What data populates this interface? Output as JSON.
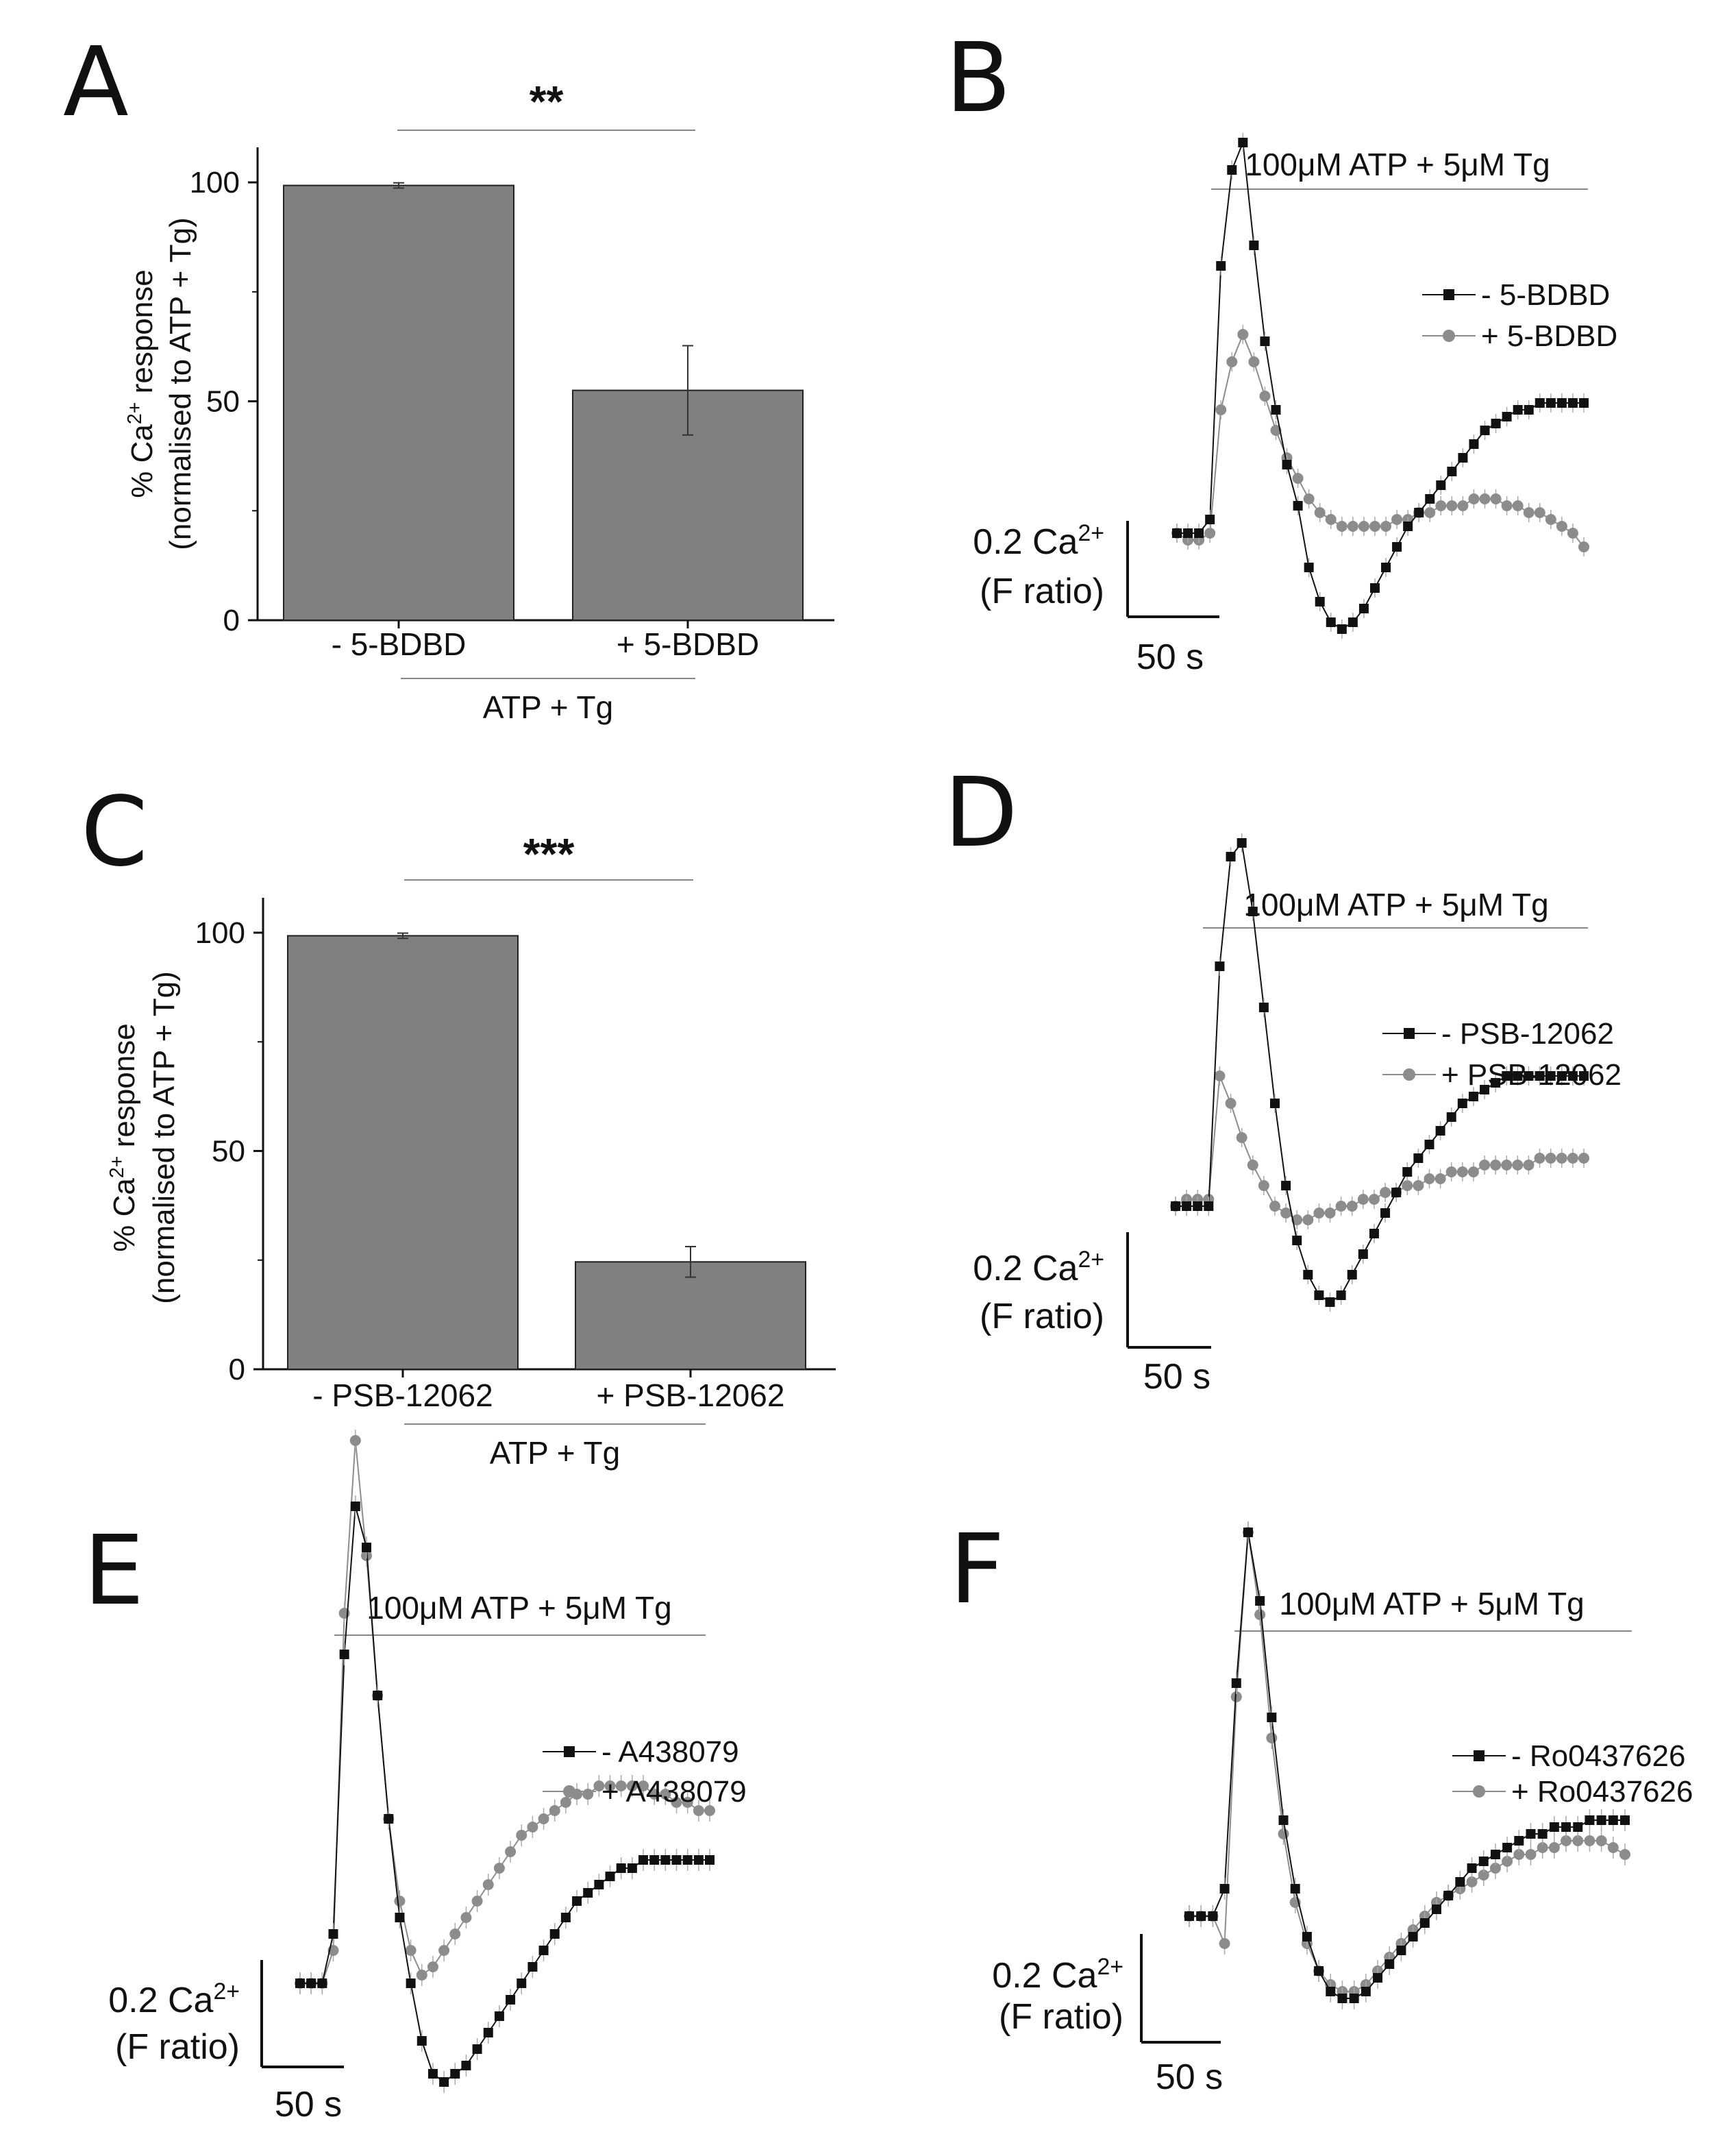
{
  "colors": {
    "bar": "#808080",
    "black_series": "#111111",
    "gray_series": "#8c8c8c",
    "line": "#888888"
  },
  "chart_data": [
    {
      "id": "A",
      "type": "bar",
      "letter": "A",
      "categories": [
        "- 5-BDBD",
        "+ 5-BDBD"
      ],
      "values": [
        99.3,
        52.5
      ],
      "errors": [
        0.6,
        10.2
      ],
      "ylim": [
        0,
        108
      ],
      "yticks": [
        "0",
        "50",
        "100"
      ],
      "ylabel_line1": "% Ca2+ response",
      "ylabel_line2": "(normalised to ATP + Tg)",
      "xgroup_label": "ATP + Tg",
      "significance": "**"
    },
    {
      "id": "C",
      "type": "bar",
      "letter": "C",
      "categories": [
        "- PSB-12062",
        "+ PSB-12062"
      ],
      "values": [
        99.3,
        24.6
      ],
      "errors": [
        0.6,
        3.5
      ],
      "ylim": [
        0,
        108
      ],
      "yticks": [
        "0",
        "50",
        "100"
      ],
      "ylabel_line1": "% Ca2+ response",
      "ylabel_line2": "(normalised to ATP + Tg)",
      "xgroup_label": "ATP + Tg",
      "significance": "***"
    },
    {
      "id": "B",
      "type": "line",
      "letter": "B",
      "stim_label": "100μM ATP + 5μM Tg",
      "series": [
        {
          "name": "- 5-BDBD",
          "marker": "square",
          "values": [
            0.2,
            0.2,
            0.2,
            0.22,
            0.59,
            0.73,
            0.77,
            0.62,
            0.48,
            0.38,
            0.3,
            0.24,
            0.15,
            0.1,
            0.07,
            0.06,
            0.07,
            0.09,
            0.12,
            0.15,
            0.18,
            0.21,
            0.23,
            0.25,
            0.27,
            0.29,
            0.31,
            0.33,
            0.35,
            0.36,
            0.37,
            0.38,
            0.38,
            0.39,
            0.39,
            0.39,
            0.39,
            0.39
          ]
        },
        {
          "name": "+ 5-BDBD",
          "marker": "circle",
          "values": [
            0.2,
            0.19,
            0.19,
            0.2,
            0.38,
            0.45,
            0.49,
            0.45,
            0.4,
            0.35,
            0.31,
            0.28,
            0.25,
            0.23,
            0.22,
            0.21,
            0.21,
            0.21,
            0.21,
            0.21,
            0.22,
            0.22,
            0.23,
            0.23,
            0.24,
            0.24,
            0.24,
            0.25,
            0.25,
            0.25,
            0.24,
            0.24,
            0.23,
            0.23,
            0.22,
            0.21,
            0.2,
            0.18
          ]
        }
      ],
      "scale_y_label_line1": "0.2 Ca2+",
      "scale_y_label_line2": "(F ratio)",
      "scale_x_label": "50 s"
    },
    {
      "id": "D",
      "type": "line",
      "letter": "D",
      "stim_label": "100μM ATP + 5μM Tg",
      "series": [
        {
          "name": "- PSB-12062",
          "marker": "square",
          "values": [
            0.27,
            0.27,
            0.27,
            0.27,
            0.62,
            0.78,
            0.8,
            0.7,
            0.56,
            0.42,
            0.3,
            0.22,
            0.17,
            0.14,
            0.13,
            0.14,
            0.17,
            0.2,
            0.23,
            0.26,
            0.29,
            0.32,
            0.34,
            0.36,
            0.38,
            0.4,
            0.42,
            0.43,
            0.44,
            0.45,
            0.46,
            0.46,
            0.46,
            0.46,
            0.46,
            0.46,
            0.46,
            0.46
          ]
        },
        {
          "name": "+ PSB-12062",
          "marker": "circle",
          "values": [
            0.27,
            0.28,
            0.28,
            0.28,
            0.46,
            0.42,
            0.37,
            0.33,
            0.3,
            0.27,
            0.26,
            0.25,
            0.25,
            0.26,
            0.26,
            0.27,
            0.27,
            0.28,
            0.28,
            0.29,
            0.29,
            0.3,
            0.3,
            0.31,
            0.31,
            0.32,
            0.32,
            0.32,
            0.33,
            0.33,
            0.33,
            0.33,
            0.33,
            0.34,
            0.34,
            0.34,
            0.34,
            0.34
          ]
        }
      ],
      "scale_y_label_line1": "0.2 Ca2+",
      "scale_y_label_line2": "(F ratio)",
      "scale_x_label": "50 s"
    },
    {
      "id": "E",
      "type": "line",
      "letter": "E",
      "stim_label": "100μM ATP + 5μM Tg",
      "series": [
        {
          "name": "- A438079",
          "marker": "square",
          "values": [
            0.2,
            0.2,
            0.2,
            0.26,
            0.6,
            0.78,
            0.73,
            0.55,
            0.4,
            0.28,
            0.2,
            0.13,
            0.09,
            0.08,
            0.09,
            0.1,
            0.12,
            0.14,
            0.16,
            0.18,
            0.2,
            0.22,
            0.24,
            0.26,
            0.28,
            0.3,
            0.31,
            0.32,
            0.33,
            0.34,
            0.34,
            0.35,
            0.35,
            0.35,
            0.35,
            0.35,
            0.35,
            0.35
          ]
        },
        {
          "name": "+ A438079",
          "marker": "circle",
          "values": [
            0.2,
            0.2,
            0.2,
            0.24,
            0.65,
            0.86,
            0.72,
            0.55,
            0.4,
            0.3,
            0.24,
            0.21,
            0.22,
            0.24,
            0.26,
            0.28,
            0.3,
            0.32,
            0.34,
            0.36,
            0.38,
            0.39,
            0.4,
            0.41,
            0.42,
            0.43,
            0.43,
            0.44,
            0.44,
            0.44,
            0.44,
            0.44,
            0.43,
            0.43,
            0.42,
            0.42,
            0.41,
            0.41
          ]
        }
      ],
      "scale_y_label_line1": "0.2 Ca2+",
      "scale_y_label_line2": "(F ratio)",
      "scale_x_label": "50 s"
    },
    {
      "id": "F",
      "type": "line",
      "letter": "F",
      "stim_label": "100μM ATP + 5μM Tg",
      "series": [
        {
          "name": "- Ro0437626",
          "marker": "square",
          "values": [
            0.26,
            0.26,
            0.26,
            0.3,
            0.6,
            0.82,
            0.72,
            0.55,
            0.4,
            0.3,
            0.23,
            0.18,
            0.15,
            0.14,
            0.14,
            0.15,
            0.17,
            0.19,
            0.21,
            0.23,
            0.25,
            0.27,
            0.29,
            0.31,
            0.33,
            0.34,
            0.35,
            0.36,
            0.37,
            0.38,
            0.38,
            0.39,
            0.39,
            0.39,
            0.4,
            0.4,
            0.4,
            0.4
          ]
        },
        {
          "name": "+ Ro0437626",
          "marker": "circle",
          "values": [
            0.26,
            0.26,
            0.26,
            0.22,
            0.58,
            0.82,
            0.7,
            0.52,
            0.38,
            0.28,
            0.22,
            0.18,
            0.16,
            0.15,
            0.15,
            0.16,
            0.18,
            0.2,
            0.22,
            0.24,
            0.26,
            0.28,
            0.29,
            0.3,
            0.31,
            0.32,
            0.33,
            0.34,
            0.35,
            0.35,
            0.36,
            0.36,
            0.37,
            0.37,
            0.37,
            0.37,
            0.36,
            0.35
          ]
        }
      ],
      "scale_y_label_line1": "0.2 Ca2+",
      "scale_y_label_line2": "(F ratio)",
      "scale_x_label": "50 s"
    }
  ]
}
